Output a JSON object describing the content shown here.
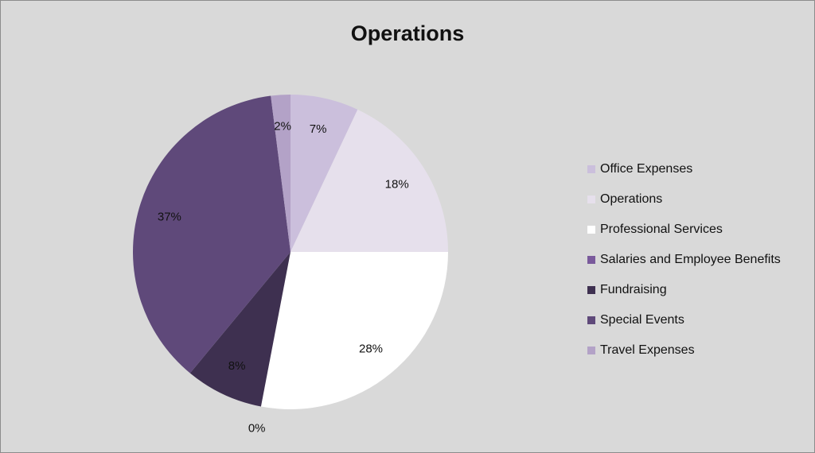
{
  "chart_data": {
    "type": "pie",
    "title": "Operations",
    "legend_position": "right",
    "slices": [
      {
        "name": "Office Expenses",
        "value": 7,
        "label": "7%",
        "color": "#cbbfdc"
      },
      {
        "name": "Operations",
        "value": 18,
        "label": "18%",
        "color": "#e6e0ec"
      },
      {
        "name": "Professional Services",
        "value": 28,
        "label": "28%",
        "color": "#ffffff"
      },
      {
        "name": "Salaries and Employee Benefits",
        "value": 0,
        "label": "0%",
        "color": "#7a5a9c"
      },
      {
        "name": "Fundraising",
        "value": 8,
        "label": "8%",
        "color": "#3e3050"
      },
      {
        "name": "Special Events",
        "value": 37,
        "label": "37%",
        "color": "#5f497a"
      },
      {
        "name": "Travel Expenses",
        "value": 2,
        "label": "2%",
        "color": "#b3a2c7"
      }
    ]
  }
}
